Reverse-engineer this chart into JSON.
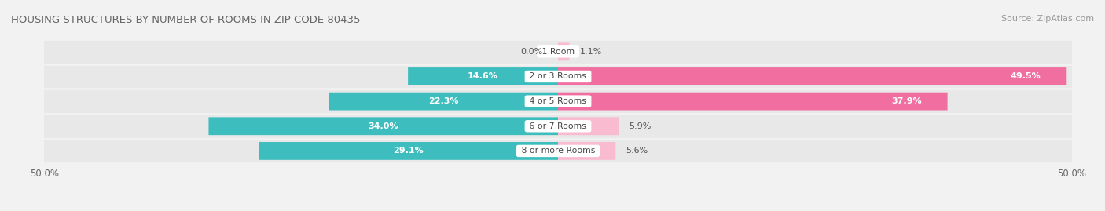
{
  "title": "HOUSING STRUCTURES BY NUMBER OF ROOMS IN ZIP CODE 80435",
  "source": "Source: ZipAtlas.com",
  "categories": [
    "1 Room",
    "2 or 3 Rooms",
    "4 or 5 Rooms",
    "6 or 7 Rooms",
    "8 or more Rooms"
  ],
  "owner_values": [
    0.0,
    14.6,
    22.3,
    34.0,
    29.1
  ],
  "renter_values": [
    1.1,
    49.5,
    37.9,
    5.9,
    5.6
  ],
  "owner_color": "#3DBDBD",
  "renter_color": "#F06FA0",
  "renter_light_color": "#F9BBCF",
  "bg_color": "#F2F2F2",
  "bar_bg_color": "#E2E2E2",
  "row_bg_color": "#EBEBEB",
  "axis_max": 50.0,
  "bar_height": 0.72,
  "title_color": "#666666",
  "source_color": "#999999",
  "label_dark": "#555555",
  "label_white": "#FFFFFF"
}
